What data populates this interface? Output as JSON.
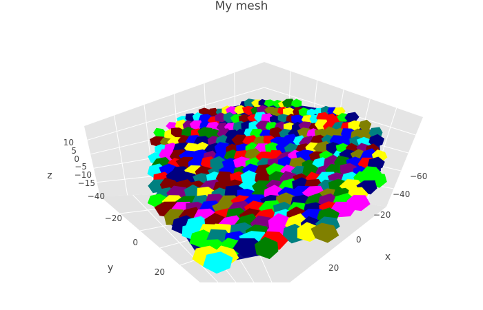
{
  "chart_data": {
    "type": "mesh3d",
    "title": "My mesh",
    "xlabel": "x",
    "ylabel": "y",
    "zlabel": "z",
    "x_ticks": [
      "−60",
      "−40",
      "−20",
      "0",
      "20"
    ],
    "y_ticks": [
      "−40",
      "−20",
      "0",
      "20"
    ],
    "z_ticks": [
      "10",
      "5",
      "0",
      "−5",
      "−10",
      "−15"
    ],
    "grid": true,
    "face_colors": [
      "#0000ff",
      "#00ffff",
      "#ff00ff",
      "#ffff00",
      "#008000",
      "#00ff00",
      "#ff0000",
      "#800000",
      "#000080",
      "#808000",
      "#800080",
      "#008080"
    ]
  }
}
